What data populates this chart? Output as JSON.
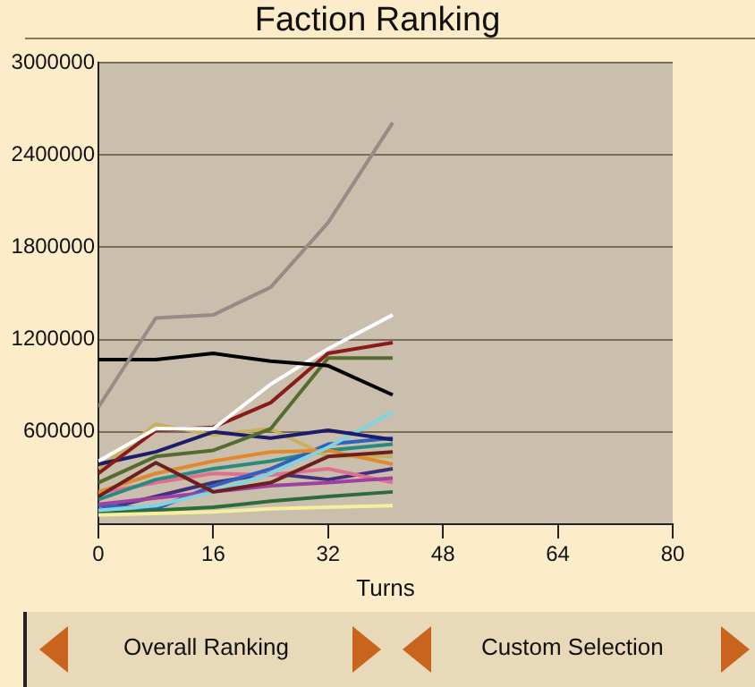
{
  "chart_data": {
    "type": "line",
    "title": "Faction Ranking",
    "xlabel": "Turns",
    "x": [
      0,
      8,
      16,
      24,
      32,
      41
    ],
    "xlim": [
      0,
      80
    ],
    "xticks": [
      0,
      16,
      32,
      48,
      64,
      80
    ],
    "ylim": [
      0,
      3000000
    ],
    "yticks": [
      600000,
      1200000,
      1800000,
      2400000,
      3000000
    ],
    "grid": "y",
    "legend": false,
    "marker": "none",
    "line_style": "solid",
    "annotations": [
      "Overall Ranking",
      "Custom Selection"
    ],
    "series": [
      {
        "color": "#988a86",
        "values": [
          760000,
          1340000,
          1360000,
          1540000,
          1960000,
          2610000
        ]
      },
      {
        "color": "#000000",
        "values": [
          1070000,
          1070000,
          1110000,
          1060000,
          1030000,
          840000
        ]
      },
      {
        "color": "#ffffff",
        "values": [
          410000,
          620000,
          620000,
          910000,
          1140000,
          1360000
        ]
      },
      {
        "color": "#8b1a1a",
        "values": [
          330000,
          610000,
          630000,
          790000,
          1110000,
          1180000
        ]
      },
      {
        "color": "#556b2f",
        "values": [
          270000,
          440000,
          480000,
          620000,
          1080000,
          1080000
        ]
      },
      {
        "color": "#1c1c6b",
        "values": [
          390000,
          470000,
          600000,
          560000,
          610000,
          550000
        ]
      },
      {
        "color": "#6b2020",
        "values": [
          180000,
          400000,
          210000,
          270000,
          440000,
          470000
        ]
      },
      {
        "color": "#7fd4e0",
        "values": [
          90000,
          120000,
          210000,
          330000,
          500000,
          730000
        ]
      },
      {
        "color": "#e08a30",
        "values": [
          210000,
          330000,
          410000,
          470000,
          480000,
          390000
        ]
      },
      {
        "color": "#f5f0a0",
        "values": [
          60000,
          70000,
          80000,
          100000,
          110000,
          120000
        ]
      },
      {
        "color": "#a040a0",
        "values": [
          130000,
          170000,
          210000,
          250000,
          270000,
          300000
        ]
      },
      {
        "color": "#2e6b3a",
        "values": [
          70000,
          90000,
          110000,
          150000,
          180000,
          210000
        ]
      },
      {
        "color": "#c8b060",
        "values": [
          360000,
          650000,
          580000,
          620000,
          440000,
          440000
        ]
      },
      {
        "color": "#3060c0",
        "values": [
          120000,
          100000,
          250000,
          360000,
          520000,
          560000
        ]
      },
      {
        "color": "#2a8a80",
        "values": [
          160000,
          290000,
          360000,
          410000,
          480000,
          520000
        ]
      },
      {
        "color": "#e07090",
        "values": [
          200000,
          270000,
          330000,
          320000,
          360000,
          270000
        ]
      },
      {
        "color": "#40307a",
        "values": [
          90000,
          180000,
          270000,
          330000,
          290000,
          360000
        ]
      }
    ]
  }
}
